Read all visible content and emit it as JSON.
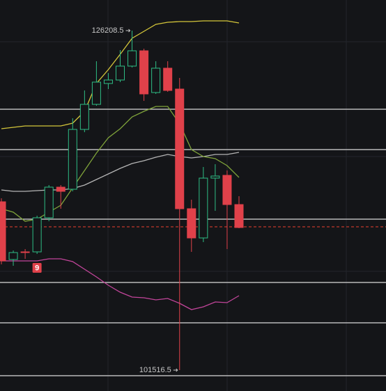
{
  "chart_data": {
    "type": "candlestick",
    "open": [
      113761,
      109561,
      110118,
      110118,
      112597,
      114824,
      114672,
      119023,
      120845,
      122363,
      122616,
      123628,
      124741,
      121705,
      123476,
      121958,
      113255,
      111130,
      115481,
      115683,
      113558
    ],
    "high": [
      114014,
      110219,
      110320,
      112749,
      114975,
      114975,
      119833,
      121857,
      123982,
      123122,
      124792,
      126208.5,
      124893,
      123982,
      123982,
      122768,
      113913,
      116290,
      116493,
      116037,
      114166
    ],
    "low": [
      109207,
      109105,
      109612,
      109966,
      112344,
      113255,
      114520,
      118821,
      120744,
      121958,
      122464,
      123527,
      121098,
      121604,
      121756,
      101516.5,
      110118,
      110826,
      113103,
      110320,
      111838
    ],
    "close": [
      109460,
      110067,
      110067,
      112597,
      114824,
      114520,
      119023,
      120845,
      122464,
      122616,
      123628,
      124741,
      121604,
      123476,
      121857,
      113255,
      111130,
      115481,
      115633,
      113558,
      111889
    ],
    "up_color": "#2ebd85",
    "down_color": "#e0414a",
    "lines": [
      {
        "color": "#d4c63a",
        "values": [
          119074,
          119175,
          119276,
          119276,
          119276,
          119276,
          119479,
          120339,
          122363,
          123375,
          124488,
          125652,
          126158,
          126664,
          126816,
          126866,
          126866,
          126917,
          126917,
          126917,
          126765
        ]
      },
      {
        "color": "#b5b5b5",
        "values": [
          114621,
          114520,
          114520,
          114571,
          114621,
          114621,
          114722,
          114975,
          115380,
          115785,
          116190,
          116544,
          116746,
          116999,
          117202,
          117050,
          116949,
          117050,
          117202,
          117202,
          117354
        ]
      },
      {
        "color": "#7fa33a",
        "values": [
          113255,
          113002,
          112344,
          112496,
          113002,
          113508,
          114773,
          116038,
          117303,
          118416,
          119074,
          119934,
          120339,
          120693,
          120693,
          119428,
          117556,
          117050,
          116898,
          116392,
          115532
        ]
      },
      {
        "color": "#c2459a",
        "values": [
          109460,
          109460,
          109460,
          109460,
          109612,
          109612,
          109409,
          108853,
          108296,
          107689,
          107183,
          106829,
          106778,
          106626,
          106728,
          106373,
          105918,
          106120,
          106475,
          106424,
          106930
        ]
      }
    ],
    "levels": [
      120490,
      117556,
      112496,
      107891,
      104956,
      101112
    ],
    "level_color": "#d9d9d9",
    "dashed_level": {
      "value": 111939,
      "color": "#c0392b"
    },
    "annotations": [
      {
        "text": "9",
        "color": "#e0414a"
      }
    ]
  }
}
